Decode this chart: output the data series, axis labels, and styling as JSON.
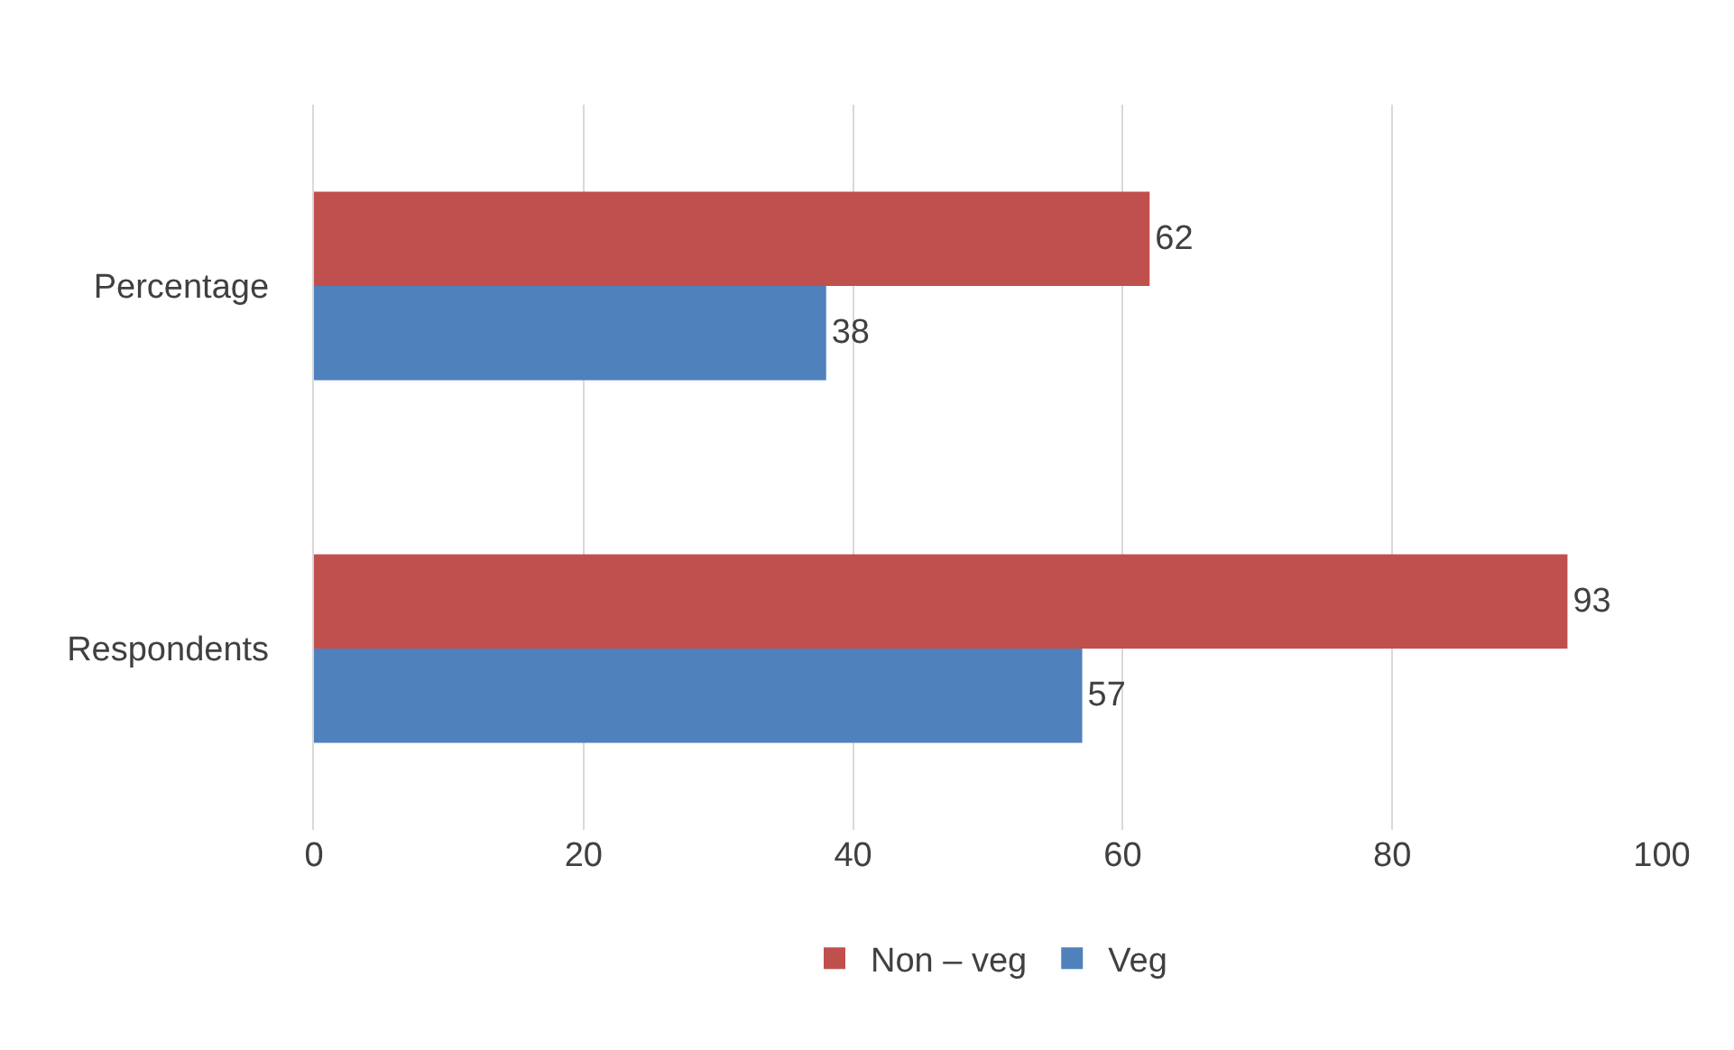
{
  "chart_data": {
    "type": "bar",
    "orientation": "horizontal",
    "categories": [
      "Percentage",
      "Respondents"
    ],
    "series": [
      {
        "name": "Non – veg",
        "color": "#c0504d",
        "values": [
          62,
          93
        ]
      },
      {
        "name": "Veg",
        "color": "#4f81bd",
        "values": [
          38,
          57
        ]
      }
    ],
    "xlim": [
      0,
      100
    ],
    "xticks": [
      0,
      20,
      40,
      60,
      80,
      100
    ],
    "grid": "x",
    "legend": "bottom",
    "data_labels": true
  }
}
